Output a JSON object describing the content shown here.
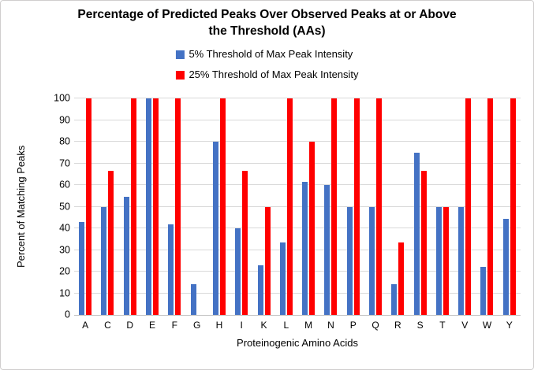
{
  "header": {
    "title_lines": [
      "Percentage of Predicted Peaks Over Observed Peaks at or Above",
      "the Threshold (AAs)"
    ]
  },
  "chart_data": {
    "type": "bar",
    "title": "Percentage of Predicted Peaks Over Observed Peaks at or Above the Threshold (AAs)",
    "xlabel": "Proteinogenic Amino Acids",
    "ylabel": "Percent of Matching Peaks",
    "ylim": [
      0,
      100
    ],
    "yticks": [
      0,
      10,
      20,
      30,
      40,
      50,
      60,
      70,
      80,
      90,
      100
    ],
    "grid": true,
    "legend_position": "top-center",
    "categories": [
      "A",
      "C",
      "D",
      "E",
      "F",
      "G",
      "H",
      "I",
      "K",
      "L",
      "M",
      "N",
      "P",
      "Q",
      "R",
      "S",
      "T",
      "V",
      "W",
      "Y"
    ],
    "series": [
      {
        "id": "5pct",
        "name": "5% Threshold of Max Peak Intensity",
        "color": "#4472C4",
        "values": [
          42.9,
          50,
          54.5,
          100,
          41.7,
          14.3,
          80,
          40,
          23,
          33.3,
          61.5,
          60,
          50,
          50,
          14.3,
          75,
          50,
          50,
          22.2,
          44.4
        ]
      },
      {
        "id": "25pct",
        "name": "25% Threshold of Max Peak Intensity",
        "color": "#FF0000",
        "values": [
          100,
          66.7,
          100,
          100,
          100,
          0,
          100,
          66.7,
          50,
          100,
          80,
          100,
          100,
          100,
          33.3,
          66.7,
          50,
          100,
          100,
          100
        ]
      }
    ]
  },
  "colors": {
    "gridline": "#D9D9D9",
    "axis_line": "#BFBFBF",
    "frame_border": "#D0CECE"
  }
}
